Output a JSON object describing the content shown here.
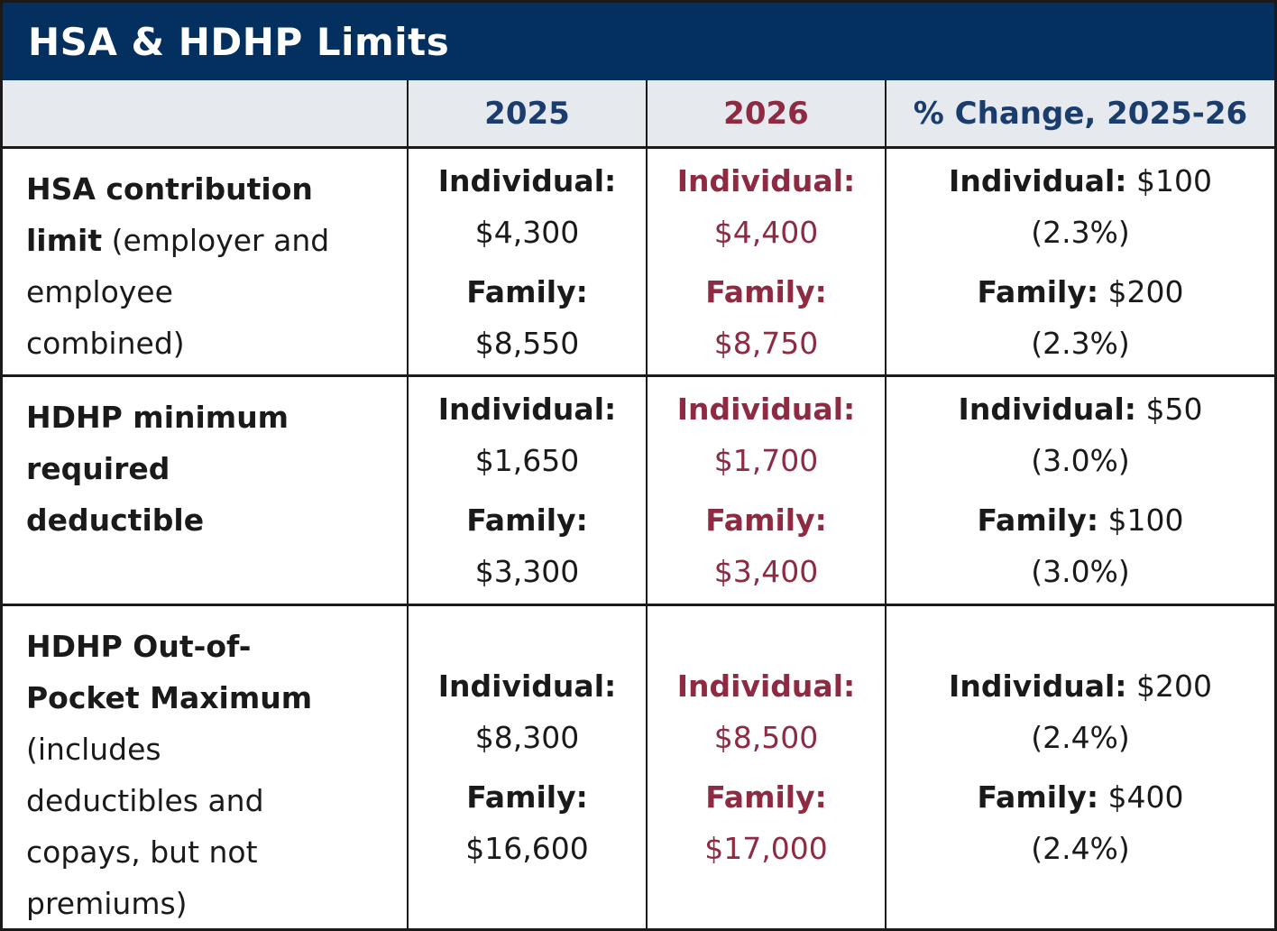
{
  "title": "HSA & HDHP Limits",
  "columns": {
    "blank": "",
    "y2025": "2025",
    "y2026": "2026",
    "change": "% Change, 2025-26"
  },
  "colors": {
    "navy_bg": "#03305f",
    "navy_text": "#1a3d6d",
    "maroon": "#8e2a41",
    "header_bg": "#e6e9ed",
    "body_text": "#1a1a1a",
    "border": "#1a1a1a",
    "title_text": "#ffffff"
  },
  "rows": [
    {
      "name": "hsa-contribution-limit",
      "label_lines": [
        [
          {
            "t": "HSA contribution",
            "b": true
          }
        ],
        [
          {
            "t": "limit",
            "b": true
          },
          {
            "t": " (employer and",
            "b": false
          }
        ],
        [
          {
            "t": "employee",
            "b": false
          }
        ],
        [
          {
            "t": "combined)",
            "b": false
          }
        ]
      ],
      "y2025": [
        {
          "label": "Individual:",
          "value": "$4,300"
        },
        {
          "label": "Family:",
          "value": "$8,550"
        }
      ],
      "y2026": [
        {
          "label": "Individual:",
          "value": "$4,400"
        },
        {
          "label": "Family:",
          "value": "$8,750"
        }
      ],
      "change": [
        {
          "label": "Individual:",
          "value": "$100",
          "pct": "(2.3%)"
        },
        {
          "label": "Family:",
          "value": "$200",
          "pct": "(2.3%)"
        }
      ]
    },
    {
      "name": "hdhp-minimum-required-deductible",
      "label_lines": [
        [
          {
            "t": "HDHP minimum",
            "b": true
          }
        ],
        [
          {
            "t": "required",
            "b": true
          }
        ],
        [
          {
            "t": "deductible",
            "b": true
          }
        ]
      ],
      "y2025": [
        {
          "label": "Individual:",
          "value": "$1,650"
        },
        {
          "label": "Family:",
          "value": "$3,300"
        }
      ],
      "y2026": [
        {
          "label": "Individual:",
          "value": "$1,700"
        },
        {
          "label": "Family:",
          "value": "$3,400"
        }
      ],
      "change": [
        {
          "label": "Individual:",
          "value": "$50",
          "pct": "(3.0%)"
        },
        {
          "label": "Family:",
          "value": "$100",
          "pct": "(3.0%)"
        }
      ]
    },
    {
      "name": "hdhp-out-of-pocket-maximum",
      "label_lines": [
        [
          {
            "t": "HDHP Out-of-",
            "b": true
          }
        ],
        [
          {
            "t": "Pocket Maximum",
            "b": true
          }
        ],
        [
          {
            "t": "(includes",
            "b": false
          }
        ],
        [
          {
            "t": "deductibles and",
            "b": false
          }
        ],
        [
          {
            "t": "copays, but not",
            "b": false
          }
        ],
        [
          {
            "t": "premiums)",
            "b": false
          }
        ]
      ],
      "y2025": [
        {
          "label": "Individual:",
          "value": "$8,300"
        },
        {
          "label": "Family:",
          "value": "$16,600"
        }
      ],
      "y2026": [
        {
          "label": "Individual:",
          "value": "$8,500"
        },
        {
          "label": "Family:",
          "value": "$17,000"
        }
      ],
      "change": [
        {
          "label": "Individual:",
          "value": "$200",
          "pct": "(2.4%)"
        },
        {
          "label": "Family:",
          "value": "$400",
          "pct": "(2.4%)"
        }
      ]
    }
  ]
}
